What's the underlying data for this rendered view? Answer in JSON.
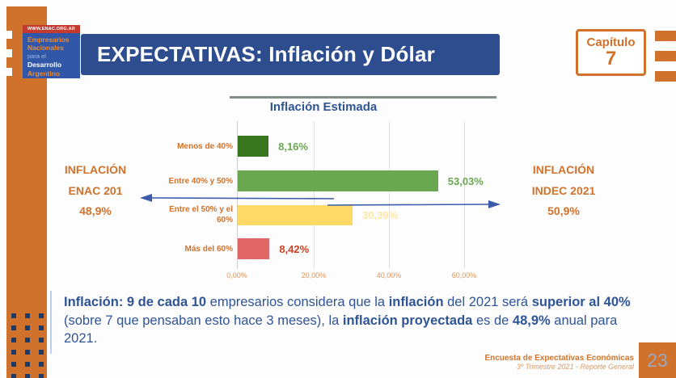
{
  "brand": {
    "url_banner": "WWW.ENAC.ORG.AR",
    "logo_lines": [
      "Empresarios",
      "Nacionales",
      "para el",
      "Desarrollo",
      "Argentino"
    ]
  },
  "header": {
    "title": "EXPECTATIVAS: Inflación y Dólar"
  },
  "chapter": {
    "label": "Capítulo",
    "number": "7"
  },
  "chart_data": {
    "type": "bar",
    "orientation": "horizontal",
    "title": "Inflación Estimada",
    "categories": [
      "Menos de 40%",
      "Entre 40% y 50%",
      "Entre el 50% y el 60%",
      "Más del 60%"
    ],
    "category_labels": [
      "Menos de 40%",
      "Entre 40% y 50%",
      "Entre el 50% y el\n60%",
      "Más del 60%"
    ],
    "values": [
      8.16,
      53.03,
      30.39,
      8.42
    ],
    "value_labels": [
      "8,16%",
      "53,03%",
      "30,39%",
      "8,42%"
    ],
    "bar_colors": [
      "#38761d",
      "#6aa84f",
      "#ffd966",
      "#e06666"
    ],
    "label_colors": [
      "#6aa84f",
      "#6aa84f",
      "#fce8a6",
      "#cc4125"
    ],
    "x_ticks": [
      "0,00%",
      "20,00%",
      "40,00%",
      "60,00%"
    ],
    "xlim": [
      0,
      68
    ],
    "grid": true,
    "legend": "none"
  },
  "annotations": {
    "left": {
      "line1": "INFLACIÓN",
      "line2": "ENAC 201",
      "line3": "48,9%"
    },
    "right": {
      "line1": "INFLACIÓN",
      "line2": "INDEC 2021",
      "line3": "50,9%"
    }
  },
  "paragraph": {
    "segments": [
      {
        "t": "Inflación: 9 de cada 10",
        "b": true
      },
      {
        "t": " empresarios considera que la ",
        "b": false
      },
      {
        "t": "inflación",
        "b": true
      },
      {
        "t": " del 2021 será ",
        "b": false
      },
      {
        "t": "superior al 40%",
        "b": true
      },
      {
        "t": " (sobre 7 que pensaban esto hace 3 meses), la ",
        "b": false
      },
      {
        "t": "inflación proyectada",
        "b": true
      },
      {
        "t": " es de ",
        "b": false
      },
      {
        "t": "48,9%",
        "b": true
      },
      {
        "t": " anual para 2021.",
        "b": false
      }
    ]
  },
  "footer": {
    "line1": "Encuesta de Expectativas Económicas",
    "line2": "3º Trimestre 2021 - Reporte General",
    "page_number": "23"
  },
  "colors": {
    "accent_orange": "#d0722b",
    "header_blue": "#2e4d8e",
    "text_blue": "#2e5496",
    "arrow_blue": "#3a5ba9",
    "logo_red": "#c23b2e",
    "logo_blue": "#3157a8"
  }
}
